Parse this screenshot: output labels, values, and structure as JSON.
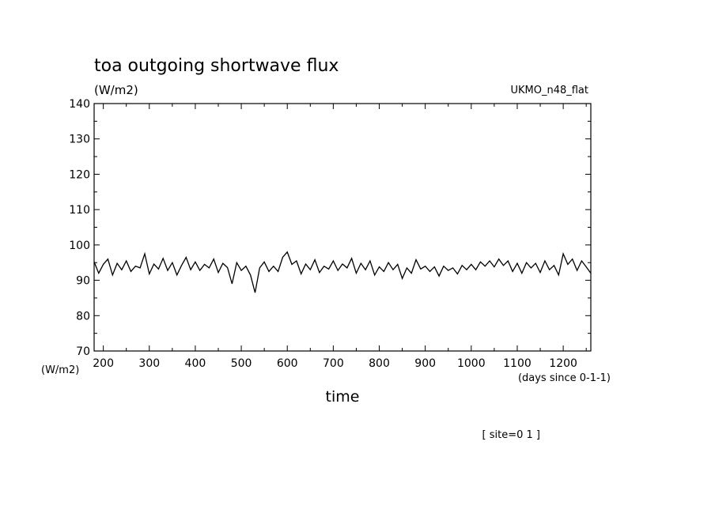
{
  "chart_data": {
    "type": "line",
    "title": "toa outgoing shortwave flux",
    "units_label": "(W/m2)",
    "model_label": "UKMO_n48_flat",
    "ylabel": "(W/m2)",
    "xlabel": "time",
    "x_units": "(days since 0-1-1)",
    "footnote": "[ site=0 1 ]",
    "xlim": [
      180,
      1260
    ],
    "ylim": [
      70,
      140
    ],
    "x_ticks": [
      200,
      300,
      400,
      500,
      600,
      700,
      800,
      900,
      1000,
      1100,
      1200
    ],
    "y_ticks": [
      70,
      80,
      90,
      100,
      110,
      120,
      130,
      140
    ],
    "grid": false,
    "legend": "none",
    "series": [
      {
        "color": "#000000",
        "x": [
          180,
          190,
          200,
          210,
          220,
          230,
          240,
          250,
          260,
          270,
          280,
          290,
          300,
          310,
          320,
          330,
          340,
          350,
          360,
          370,
          380,
          390,
          400,
          410,
          420,
          430,
          440,
          450,
          460,
          470,
          480,
          490,
          500,
          510,
          520,
          530,
          540,
          550,
          560,
          570,
          580,
          590,
          600,
          610,
          620,
          630,
          640,
          650,
          660,
          670,
          680,
          690,
          700,
          710,
          720,
          730,
          740,
          750,
          760,
          770,
          780,
          790,
          800,
          810,
          820,
          830,
          840,
          850,
          860,
          870,
          880,
          890,
          900,
          910,
          920,
          930,
          940,
          950,
          960,
          970,
          980,
          990,
          1000,
          1010,
          1020,
          1030,
          1040,
          1050,
          1060,
          1070,
          1080,
          1090,
          1100,
          1110,
          1120,
          1130,
          1140,
          1150,
          1160,
          1170,
          1180,
          1190,
          1200,
          1210,
          1220,
          1230,
          1240,
          1250,
          1260
        ],
        "values": [
          95.2,
          92.0,
          94.5,
          96.0,
          91.5,
          94.8,
          93.0,
          95.5,
          92.5,
          94.0,
          93.5,
          97.5,
          91.8,
          94.6,
          93.2,
          96.2,
          92.8,
          95.0,
          91.5,
          94.2,
          96.5,
          93.0,
          95.2,
          92.8,
          94.5,
          93.5,
          96.0,
          92.2,
          94.8,
          93.6,
          89.0,
          95.0,
          92.8,
          94.0,
          91.5,
          86.5,
          93.5,
          95.2,
          92.5,
          94.0,
          92.5,
          96.5,
          98.0,
          94.5,
          95.5,
          91.8,
          94.6,
          93.0,
          95.8,
          92.2,
          94.0,
          93.2,
          95.5,
          92.8,
          94.6,
          93.5,
          96.2,
          92.0,
          94.8,
          93.0,
          95.5,
          91.5,
          93.8,
          92.5,
          95.0,
          93.0,
          94.5,
          90.5,
          93.5,
          92.0,
          95.8,
          93.2,
          94.0,
          92.5,
          93.8,
          91.2,
          94.0,
          92.8,
          93.5,
          91.8,
          94.2,
          93.0,
          94.5,
          93.0,
          95.2,
          94.0,
          95.5,
          93.8,
          96.0,
          94.2,
          95.5,
          92.5,
          94.8,
          92.0,
          95.0,
          93.5,
          94.8,
          92.2,
          95.5,
          93.0,
          94.2,
          91.5,
          97.5,
          94.5,
          96.0,
          92.8,
          95.5,
          93.8,
          92.0
        ]
      }
    ]
  }
}
